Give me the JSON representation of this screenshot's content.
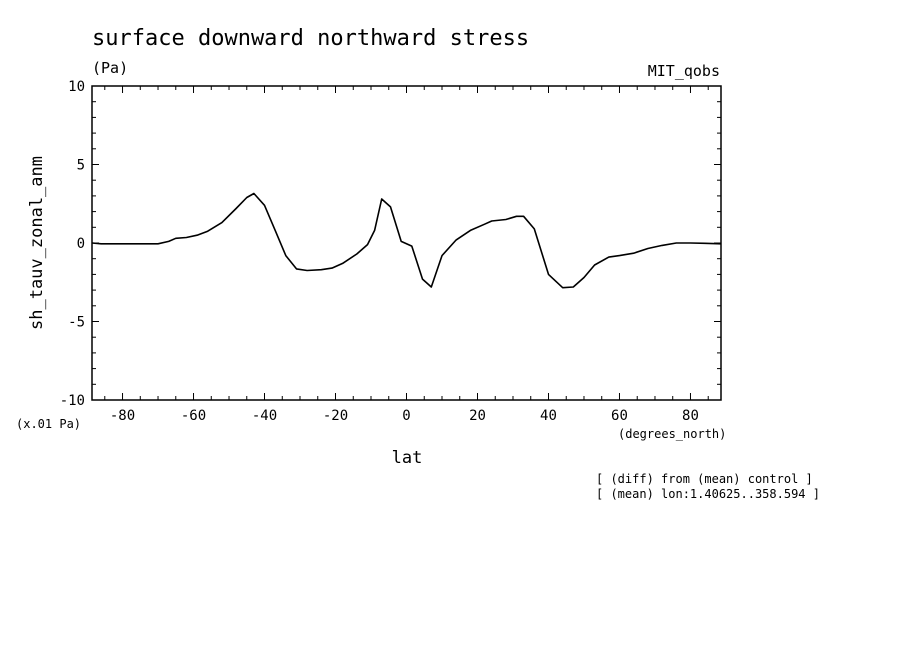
{
  "chart_data": {
    "type": "line",
    "title": "surface downward northward stress",
    "units_label": "(Pa)",
    "dataset_label": "MIT_qobs",
    "ylabel": "sh_tauv_zonal_anm",
    "xlabel": "lat",
    "scale_label": "(x.01 Pa)",
    "x_units_label": "(degrees_north)",
    "notes": [
      "[ (diff) from (mean) control ]",
      "[ (mean) lon:1.40625..358.594 ]"
    ],
    "xlim": [
      -88.6,
      88.6
    ],
    "ylim": [
      -10,
      10
    ],
    "x_ticks": [
      -80,
      -60,
      -40,
      -20,
      0,
      20,
      40,
      60,
      80
    ],
    "x_tick_labels": [
      "-80",
      "-60",
      "-40",
      "-20",
      "0",
      "20",
      "40",
      "60",
      "80"
    ],
    "y_ticks": [
      -10,
      -5,
      0,
      5,
      10
    ],
    "y_tick_labels": [
      "-10",
      "-5",
      "0",
      "5",
      "10"
    ],
    "grid": false,
    "series": [
      {
        "x": [
          -88.6,
          -86,
          -82,
          -78,
          -74,
          -70,
          -67,
          -65,
          -62,
          -59,
          -56,
          -52,
          -48,
          -45,
          -43,
          -40,
          -37,
          -34,
          -31,
          -28,
          -24,
          -21,
          -18,
          -14,
          -11,
          -9,
          -7,
          -4.5,
          -1.5,
          1.5,
          4.5,
          7,
          10,
          14,
          18,
          22,
          24,
          28,
          31,
          33,
          36,
          40,
          44,
          47,
          50,
          53,
          57,
          60,
          64,
          68,
          72,
          76,
          80,
          84,
          88.6
        ],
        "y": [
          0.0,
          -0.05,
          -0.05,
          -0.05,
          -0.05,
          -0.05,
          0.1,
          0.3,
          0.35,
          0.5,
          0.75,
          1.3,
          2.2,
          2.9,
          3.15,
          2.4,
          0.8,
          -0.8,
          -1.65,
          -1.75,
          -1.7,
          -1.6,
          -1.3,
          -0.7,
          -0.1,
          0.8,
          2.8,
          2.3,
          0.1,
          -0.2,
          -2.3,
          -2.8,
          -0.8,
          0.2,
          0.8,
          1.2,
          1.4,
          1.5,
          1.7,
          1.7,
          0.9,
          -2.0,
          -2.85,
          -2.8,
          -2.2,
          -1.4,
          -0.9,
          -0.8,
          -0.65,
          -0.35,
          -0.15,
          0.0,
          0.0,
          -0.02,
          -0.05
        ]
      }
    ]
  }
}
